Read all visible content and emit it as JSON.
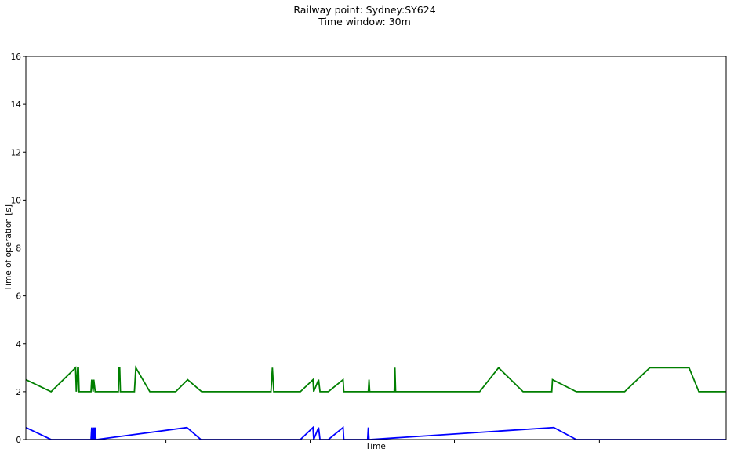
{
  "chart_data": {
    "type": "line",
    "title": "Railway point: Sydney:SY624",
    "subtitle": "Time window: 30m",
    "xlabel": "Time",
    "ylabel": "Time of operation [s]",
    "ylim": [
      0,
      16
    ],
    "yticks": [
      0,
      2,
      4,
      6,
      8,
      10,
      12,
      14,
      16
    ],
    "xlim": [
      0,
      100
    ],
    "xticks": [
      20,
      40.6,
      61.2,
      81.9
    ],
    "grid": false,
    "series": [
      {
        "color": "#0000ff",
        "x": [
          0,
          3.6,
          9.3,
          9.4,
          9.5,
          9.6,
          9.7,
          9.8,
          9.9,
          10.0,
          10.1,
          23.0,
          25.0,
          39.2,
          41.0,
          41.1,
          41.8,
          42.0,
          43.2,
          45.3,
          45.4,
          48.8,
          48.9,
          49.0,
          49.1,
          75.3,
          75.4,
          78.6,
          100
        ],
        "y": [
          0.5,
          0,
          0,
          0.5,
          0,
          0,
          0.5,
          0,
          0.5,
          0,
          0,
          0.5,
          0,
          0,
          0.5,
          0,
          0.5,
          0,
          0,
          0.5,
          0,
          0,
          0.5,
          0,
          0,
          0.5,
          0.5,
          0,
          0
        ]
      },
      {
        "color": "#007f00",
        "x": [
          0,
          3.6,
          7.1,
          7.2,
          7.4,
          7.5,
          7.6,
          9.3,
          9.4,
          9.6,
          9.7,
          9.9,
          10.0,
          13.2,
          13.3,
          13.4,
          13.5,
          15.5,
          15.7,
          17.7,
          21.4,
          23.1,
          25.1,
          35.0,
          35.2,
          35.4,
          39.2,
          41.0,
          41.1,
          41.8,
          42.0,
          43.2,
          45.3,
          45.4,
          48.9,
          49.0,
          49.1,
          52.6,
          52.7,
          52.8,
          64.8,
          67.5,
          71.0,
          75.1,
          75.2,
          78.6,
          85.5,
          89.1,
          94.7,
          96.1,
          100
        ],
        "y": [
          2.5,
          2,
          3,
          2,
          3,
          3,
          2,
          2,
          2.5,
          2,
          2.5,
          2,
          2,
          2,
          3,
          3,
          2,
          2,
          3,
          2,
          2,
          2.5,
          2,
          2,
          3,
          2,
          2,
          2.5,
          2,
          2.5,
          2,
          2,
          2.5,
          2,
          2,
          2.5,
          2,
          2,
          3,
          2,
          2,
          3,
          2,
          2,
          2.5,
          2,
          2,
          3,
          3,
          2,
          2
        ]
      }
    ]
  }
}
